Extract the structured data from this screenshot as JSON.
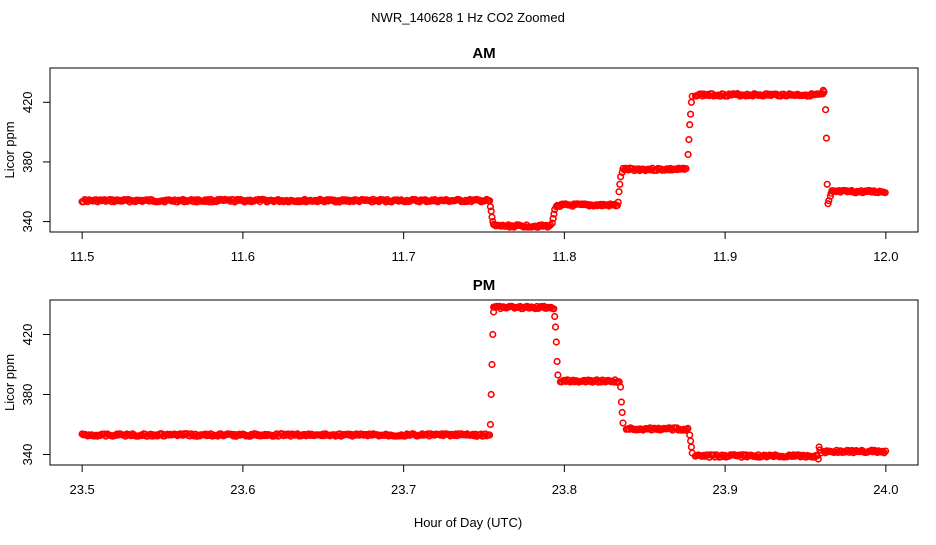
{
  "figure": {
    "title": "NWR_140628  1 Hz CO2 Zoomed",
    "xlabel": "Hour of Day (UTC)"
  },
  "colors": {
    "points": "#ff0000",
    "axes": "#000000"
  },
  "chart_data": [
    {
      "type": "scatter",
      "title": "AM",
      "xlabel": "",
      "ylabel": "Licor ppm",
      "xlim": [
        11.5,
        12.0
      ],
      "ylim": [
        333,
        443
      ],
      "xticks": [
        "11.5",
        "11.6",
        "11.7",
        "11.8",
        "11.9",
        "12.0"
      ],
      "yticks": [
        "340",
        "380",
        "420"
      ],
      "segments": [
        {
          "x": [
            11.5,
            11.753
          ],
          "y": 354
        },
        {
          "x": [
            11.7565,
            11.792
          ],
          "y": 337
        },
        {
          "x": [
            11.7955,
            11.833
          ],
          "y": 351
        },
        {
          "x": [
            11.8365,
            11.8765
          ],
          "y": 375
        },
        {
          "x": [
            11.8815,
            11.9615
          ],
          "y": 425
        },
        {
          "x": [
            11.9665,
            12.0
          ],
          "y": 360
        }
      ],
      "transitions": [
        {
          "x": 11.7535,
          "y": 354
        },
        {
          "x": 11.754,
          "y": 350
        },
        {
          "x": 11.7545,
          "y": 347
        },
        {
          "x": 11.755,
          "y": 343
        },
        {
          "x": 11.7555,
          "y": 340
        },
        {
          "x": 11.756,
          "y": 338
        },
        {
          "x": 11.7925,
          "y": 339
        },
        {
          "x": 11.793,
          "y": 342
        },
        {
          "x": 11.7935,
          "y": 345
        },
        {
          "x": 11.794,
          "y": 348
        },
        {
          "x": 11.795,
          "y": 350
        },
        {
          "x": 11.8335,
          "y": 353
        },
        {
          "x": 11.834,
          "y": 360
        },
        {
          "x": 11.8345,
          "y": 365
        },
        {
          "x": 11.835,
          "y": 370
        },
        {
          "x": 11.836,
          "y": 373
        },
        {
          "x": 11.877,
          "y": 385
        },
        {
          "x": 11.8775,
          "y": 395
        },
        {
          "x": 11.878,
          "y": 405
        },
        {
          "x": 11.8785,
          "y": 412
        },
        {
          "x": 11.879,
          "y": 420
        },
        {
          "x": 11.8795,
          "y": 424
        },
        {
          "x": 11.961,
          "y": 428
        },
        {
          "x": 11.9615,
          "y": 427
        },
        {
          "x": 11.9625,
          "y": 415
        },
        {
          "x": 11.963,
          "y": 396
        },
        {
          "x": 11.9635,
          "y": 365
        },
        {
          "x": 11.964,
          "y": 352
        },
        {
          "x": 11.9645,
          "y": 354
        },
        {
          "x": 11.9655,
          "y": 357
        },
        {
          "x": 11.966,
          "y": 359
        }
      ]
    },
    {
      "type": "scatter",
      "title": "PM",
      "xlabel": "",
      "ylabel": "Licor ppm",
      "xlim": [
        23.5,
        24.0
      ],
      "ylim": [
        333,
        443
      ],
      "xticks": [
        "23.5",
        "23.6",
        "23.7",
        "23.8",
        "23.9",
        "24.0"
      ],
      "yticks": [
        "340",
        "380",
        "420"
      ],
      "segments": [
        {
          "x": [
            23.5,
            23.753
          ],
          "y": 353
        },
        {
          "x": [
            23.756,
            23.7935
          ],
          "y": 438
        },
        {
          "x": [
            23.7975,
            23.8345
          ],
          "y": 389
        },
        {
          "x": [
            23.8385,
            23.8775
          ],
          "y": 357
        },
        {
          "x": [
            23.8815,
            23.9575
          ],
          "y": 339
        },
        {
          "x": [
            23.9615,
            24.0
          ],
          "y": 342
        }
      ],
      "transitions": [
        {
          "x": 23.7535,
          "y": 353
        },
        {
          "x": 23.754,
          "y": 360
        },
        {
          "x": 23.7545,
          "y": 380
        },
        {
          "x": 23.755,
          "y": 400
        },
        {
          "x": 23.7555,
          "y": 420
        },
        {
          "x": 23.756,
          "y": 435
        },
        {
          "x": 23.794,
          "y": 432
        },
        {
          "x": 23.7945,
          "y": 425
        },
        {
          "x": 23.795,
          "y": 415
        },
        {
          "x": 23.7955,
          "y": 402
        },
        {
          "x": 23.796,
          "y": 393
        },
        {
          "x": 23.835,
          "y": 385
        },
        {
          "x": 23.8355,
          "y": 375
        },
        {
          "x": 23.836,
          "y": 368
        },
        {
          "x": 23.8365,
          "y": 361
        },
        {
          "x": 23.878,
          "y": 353
        },
        {
          "x": 23.8785,
          "y": 349
        },
        {
          "x": 23.879,
          "y": 345
        },
        {
          "x": 23.8795,
          "y": 341
        },
        {
          "x": 23.958,
          "y": 337
        },
        {
          "x": 23.9585,
          "y": 345
        },
        {
          "x": 23.959,
          "y": 343
        },
        {
          "x": 23.9595,
          "y": 341
        }
      ]
    }
  ]
}
